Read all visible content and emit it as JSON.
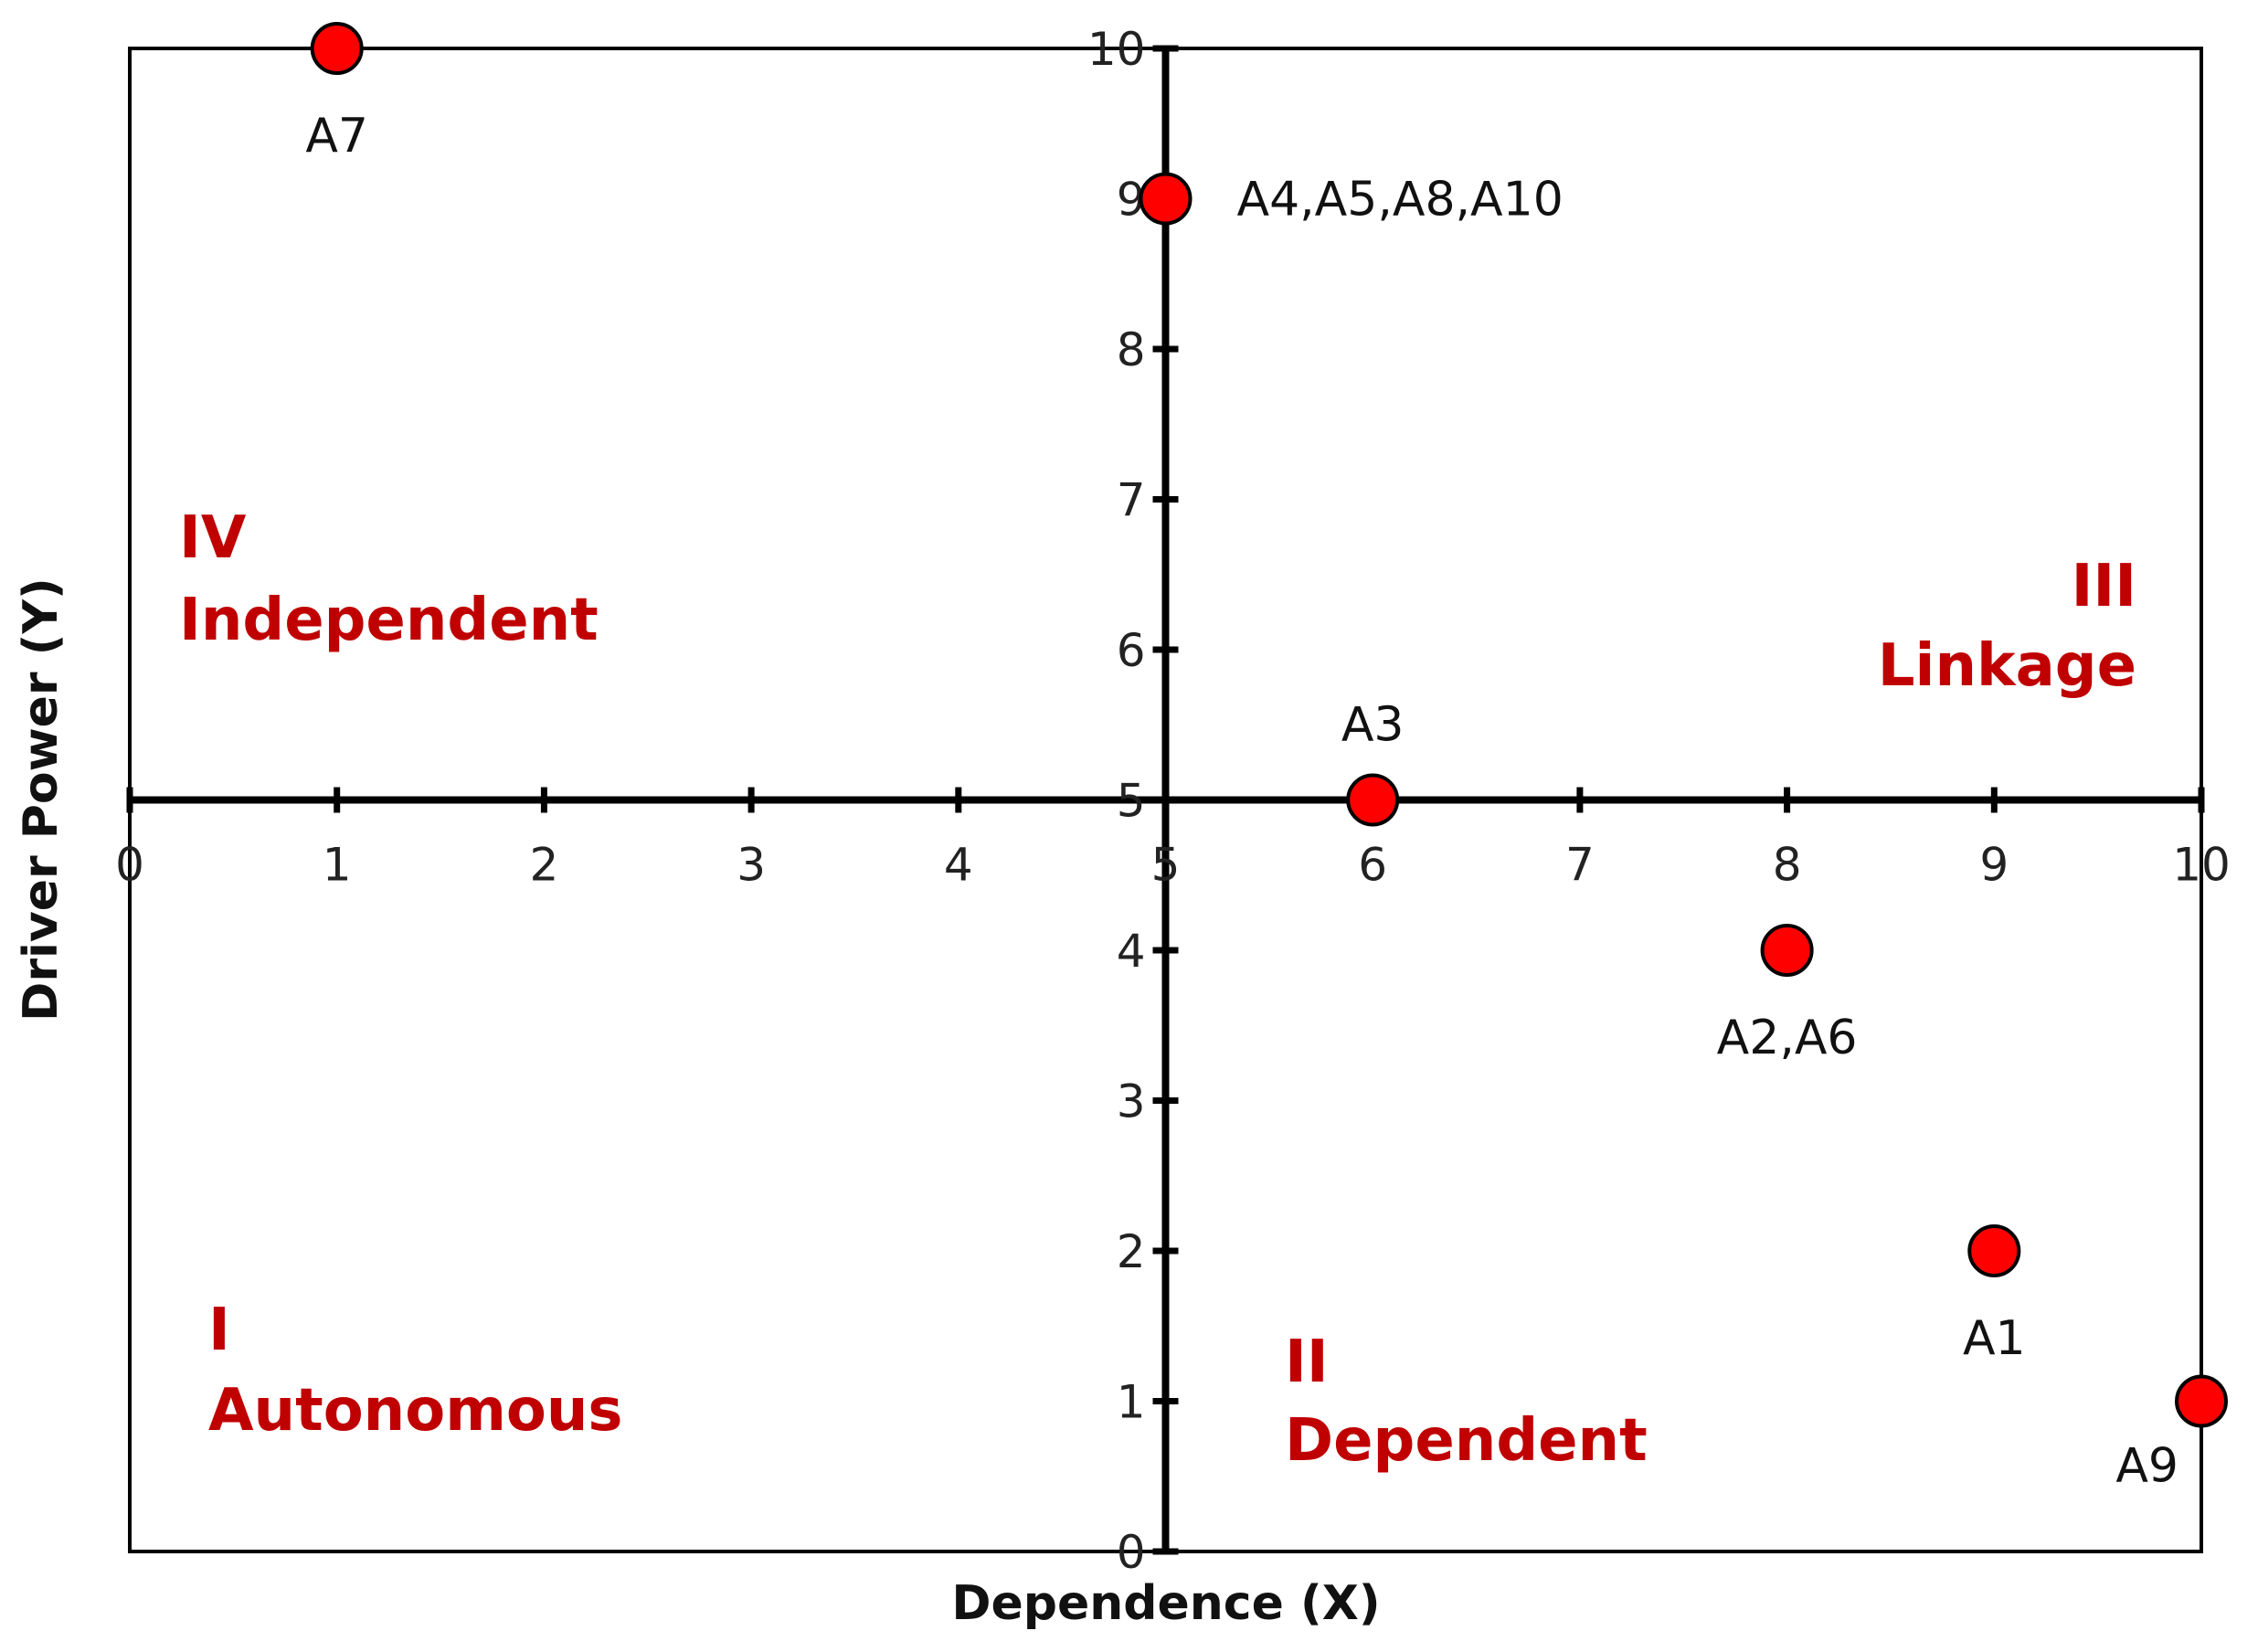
{
  "chart_data": {
    "type": "scatter",
    "title": "",
    "xlabel": "Dependence (X)",
    "ylabel": "Driver Power (Y)",
    "xlim": [
      0,
      10
    ],
    "ylim": [
      0,
      10
    ],
    "x_ticks": [
      0,
      1,
      2,
      3,
      4,
      5,
      6,
      7,
      8,
      9,
      10
    ],
    "y_ticks": [
      0,
      1,
      2,
      3,
      4,
      5,
      6,
      7,
      8,
      9,
      10
    ],
    "axes_cross": [
      5,
      5
    ],
    "grid": false,
    "legend": "none",
    "marker_color": "#ff0000",
    "quadrant_label_color": "#c00000",
    "points": [
      {
        "label": "A7",
        "x": 1,
        "y": 10,
        "label_pos": "below"
      },
      {
        "label": "A4,A5,A8,A10",
        "x": 5,
        "y": 9,
        "label_pos": "right"
      },
      {
        "label": "A3",
        "x": 6,
        "y": 5,
        "label_pos": "above"
      },
      {
        "label": "A2,A6",
        "x": 8,
        "y": 4,
        "label_pos": "below"
      },
      {
        "label": "A1",
        "x": 9,
        "y": 2,
        "label_pos": "below"
      },
      {
        "label": "A9",
        "x": 10,
        "y": 1,
        "label_pos": "below-left"
      }
    ],
    "quadrants": [
      {
        "numeral": "IV",
        "name": "Independent",
        "region": "top-left"
      },
      {
        "numeral": "III",
        "name": "Linkage",
        "region": "top-right"
      },
      {
        "numeral": "I",
        "name": "Autonomous",
        "region": "bottom-left"
      },
      {
        "numeral": "II",
        "name": "Dependent",
        "region": "bottom-right"
      }
    ]
  }
}
